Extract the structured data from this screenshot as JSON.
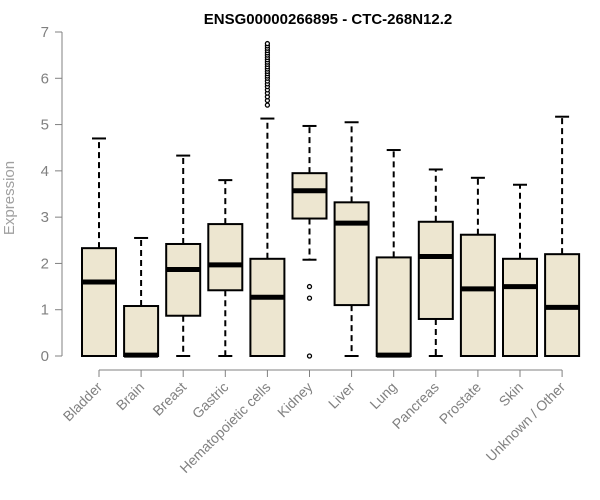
{
  "chart_data": {
    "type": "boxplot",
    "title": "ENSG00000266895 - CTC-268N12.2",
    "xlabel": "",
    "ylabel": "Expression",
    "ylim": [
      0,
      7
    ],
    "yticks": [
      0,
      1,
      2,
      3,
      4,
      5,
      6,
      7
    ],
    "colors": {
      "box_fill": "#ede6d0",
      "stroke": "#000000",
      "axis": "#808080",
      "tick_text": "#808080"
    },
    "categories": [
      "Bladder",
      "Brain",
      "Breast",
      "Gastric",
      "Hematopoietic cells",
      "Kidney",
      "Liver",
      "Lung",
      "Pancreas",
      "Prostate",
      "Skin",
      "Unknown / Other"
    ],
    "boxes": [
      {
        "category": "Bladder",
        "min": 0,
        "q1": 0,
        "median": 1.6,
        "q3": 2.33,
        "max": 4.7,
        "outliers": []
      },
      {
        "category": "Brain",
        "min": 0,
        "q1": 0,
        "median": 0.02,
        "q3": 1.08,
        "max": 2.55,
        "outliers": []
      },
      {
        "category": "Breast",
        "min": 0,
        "q1": 0.87,
        "median": 1.87,
        "q3": 2.42,
        "max": 4.33,
        "outliers": []
      },
      {
        "category": "Gastric",
        "min": 0,
        "q1": 1.42,
        "median": 1.97,
        "q3": 2.85,
        "max": 3.8,
        "outliers": []
      },
      {
        "category": "Hematopoietic cells",
        "min": 0,
        "q1": 0,
        "median": 1.27,
        "q3": 2.1,
        "max": 5.13,
        "outliers": [
          5.42,
          5.52,
          5.6,
          5.68,
          5.75,
          5.82,
          5.88,
          5.94,
          6.0,
          6.05,
          6.1,
          6.15,
          6.2,
          6.25,
          6.3,
          6.35,
          6.4,
          6.45,
          6.5,
          6.55,
          6.6,
          6.65,
          6.7,
          6.75
        ]
      },
      {
        "category": "Kidney",
        "min": 2.08,
        "q1": 2.97,
        "median": 3.57,
        "q3": 3.95,
        "max": 4.97,
        "outliers": [
          1.5,
          1.25,
          0
        ]
      },
      {
        "category": "Liver",
        "min": 0,
        "q1": 1.1,
        "median": 2.87,
        "q3": 3.32,
        "max": 5.05,
        "outliers": []
      },
      {
        "category": "Lung",
        "min": 0,
        "q1": 0,
        "median": 0.02,
        "q3": 2.13,
        "max": 4.45,
        "outliers": []
      },
      {
        "category": "Pancreas",
        "min": 0,
        "q1": 0.8,
        "median": 2.15,
        "q3": 2.9,
        "max": 4.03,
        "outliers": []
      },
      {
        "category": "Prostate",
        "min": 0,
        "q1": 0,
        "median": 1.45,
        "q3": 2.62,
        "max": 3.85,
        "outliers": []
      },
      {
        "category": "Skin",
        "min": 0,
        "q1": 0,
        "median": 1.5,
        "q3": 2.1,
        "max": 3.7,
        "outliers": []
      },
      {
        "category": "Unknown / Other",
        "min": 0,
        "q1": 0,
        "median": 1.05,
        "q3": 2.2,
        "max": 5.17,
        "outliers": []
      }
    ]
  }
}
